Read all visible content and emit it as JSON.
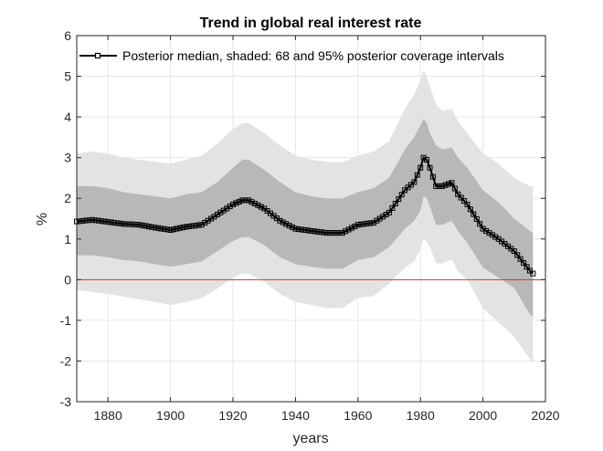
{
  "chart_data": {
    "type": "line",
    "title": "Trend in global real interest rate",
    "xlabel": "years",
    "ylabel": "%",
    "xlim": [
      1870,
      2020
    ],
    "ylim": [
      -3,
      6
    ],
    "xticks": [
      1880,
      1900,
      1920,
      1940,
      1960,
      1980,
      2000,
      2020
    ],
    "yticks": [
      -3,
      -2,
      -1,
      0,
      1,
      2,
      3,
      4,
      5,
      6
    ],
    "grid": true,
    "legend": {
      "position": "top",
      "text": "Posterior median, shaded: 68 and 95% posterior coverage intervals"
    },
    "reference_line": {
      "y": 0,
      "color": "#e03030"
    },
    "colors": {
      "median": "#000000",
      "band68": "#b8b8b8",
      "band95": "#e3e3e3",
      "grid": "#e6e6e6",
      "axis": "#262626"
    },
    "x": [
      1870,
      1875,
      1880,
      1885,
      1890,
      1895,
      1900,
      1905,
      1910,
      1915,
      1920,
      1923,
      1925,
      1930,
      1935,
      1940,
      1945,
      1950,
      1955,
      1960,
      1965,
      1970,
      1975,
      1978,
      1980,
      1981,
      1982,
      1983,
      1985,
      1987,
      1990,
      1992,
      1995,
      2000,
      2005,
      2010,
      2015,
      2016
    ],
    "series": [
      {
        "name": "Posterior median",
        "values": [
          1.43,
          1.47,
          1.42,
          1.37,
          1.35,
          1.28,
          1.22,
          1.3,
          1.35,
          1.6,
          1.85,
          1.95,
          1.95,
          1.75,
          1.45,
          1.25,
          1.2,
          1.15,
          1.15,
          1.35,
          1.4,
          1.65,
          2.2,
          2.4,
          2.75,
          3.0,
          2.95,
          2.75,
          2.3,
          2.3,
          2.38,
          2.1,
          1.85,
          1.25,
          1.0,
          0.7,
          0.22,
          0.15
        ]
      }
    ],
    "band68": {
      "upper": [
        2.3,
        2.3,
        2.25,
        2.15,
        2.1,
        2.05,
        2.0,
        2.1,
        2.15,
        2.4,
        2.75,
        2.95,
        2.95,
        2.7,
        2.4,
        2.15,
        2.05,
        2.0,
        2.0,
        2.15,
        2.25,
        2.5,
        3.2,
        3.5,
        3.8,
        3.95,
        3.85,
        3.6,
        3.3,
        3.2,
        3.25,
        3.0,
        2.75,
        2.2,
        1.9,
        1.5,
        1.2,
        1.15
      ],
      "lower": [
        0.6,
        0.6,
        0.55,
        0.48,
        0.45,
        0.38,
        0.32,
        0.38,
        0.45,
        0.7,
        0.95,
        1.05,
        1.05,
        0.85,
        0.55,
        0.38,
        0.32,
        0.27,
        0.27,
        0.48,
        0.55,
        0.8,
        1.25,
        1.45,
        1.7,
        2.05,
        2.0,
        1.8,
        1.35,
        1.35,
        1.45,
        1.2,
        0.9,
        0.3,
        0.05,
        -0.2,
        -0.85,
        -0.92
      ]
    },
    "band95": {
      "upper": [
        3.1,
        3.15,
        3.1,
        3.0,
        2.95,
        2.9,
        2.85,
        2.95,
        3.05,
        3.35,
        3.7,
        3.85,
        3.85,
        3.6,
        3.3,
        3.05,
        2.95,
        2.9,
        2.88,
        3.05,
        3.15,
        3.4,
        4.2,
        4.55,
        4.9,
        5.15,
        5.0,
        4.75,
        4.3,
        4.15,
        4.2,
        3.9,
        3.6,
        3.1,
        2.85,
        2.5,
        2.3,
        2.3
      ],
      "lower": [
        -0.25,
        -0.3,
        -0.35,
        -0.42,
        -0.48,
        -0.55,
        -0.62,
        -0.55,
        -0.45,
        -0.22,
        0.05,
        0.15,
        0.15,
        -0.05,
        -0.35,
        -0.55,
        -0.62,
        -0.7,
        -0.7,
        -0.45,
        -0.4,
        -0.1,
        0.3,
        0.45,
        0.75,
        1.0,
        0.95,
        0.8,
        0.4,
        0.4,
        0.5,
        0.2,
        0.0,
        -0.7,
        -1.05,
        -1.4,
        -1.95,
        -2.05
      ]
    }
  }
}
